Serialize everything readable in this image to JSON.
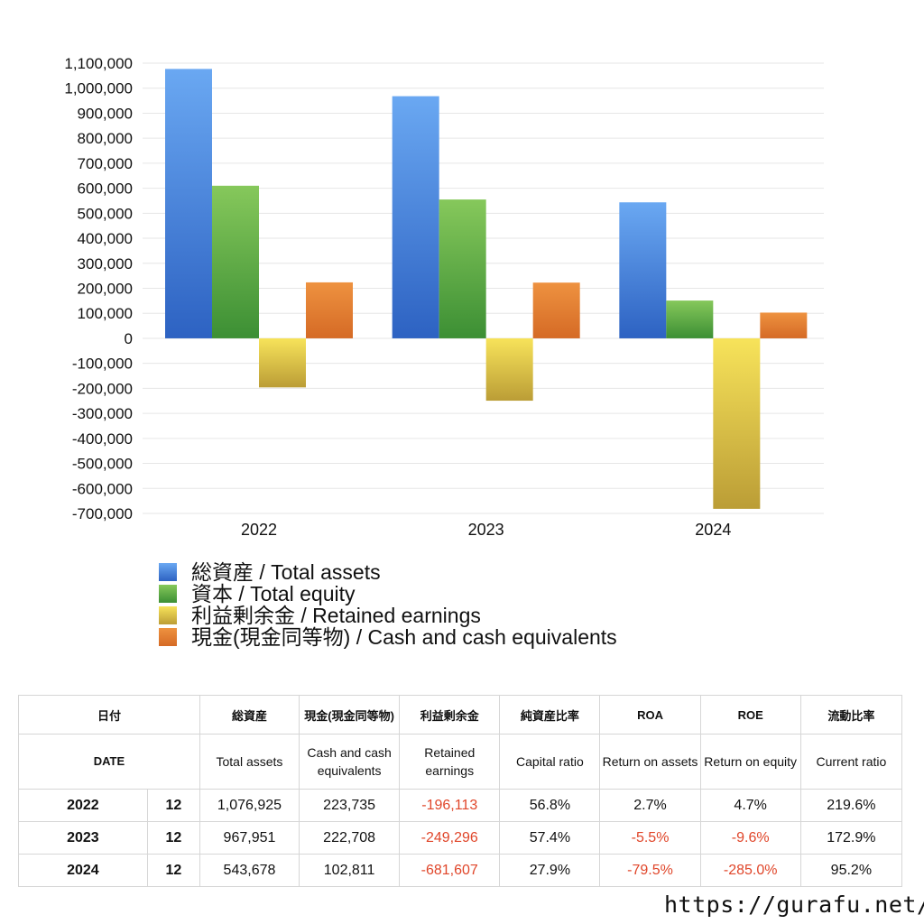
{
  "chart_data": {
    "type": "bar",
    "categories": [
      "2022",
      "2023",
      "2024"
    ],
    "series": [
      {
        "name": "総資産 / Total assets",
        "values": [
          1076925,
          967951,
          543678
        ],
        "color_top": "#6aa8f2",
        "color_bottom": "#2d62c2"
      },
      {
        "name": "資本 / Total equity",
        "values": [
          610000,
          555000,
          151000
        ],
        "color_top": "#86c85b",
        "color_bottom": "#3c8f34"
      },
      {
        "name": "利益剰余金 / Retained earnings",
        "values": [
          -196113,
          -249296,
          -681607
        ],
        "color_top": "#f7e35a",
        "color_bottom": "#bb9d36"
      },
      {
        "name": "現金(現金同等物) / Cash and cash equivalents",
        "values": [
          223735,
          222708,
          102811
        ],
        "color_top": "#ee9240",
        "color_bottom": "#d56a25"
      }
    ],
    "ylim": [
      -700000,
      1100000
    ],
    "yticks": [
      1100000,
      1000000,
      900000,
      800000,
      700000,
      600000,
      500000,
      400000,
      300000,
      200000,
      100000,
      0,
      -100000,
      -200000,
      -300000,
      -400000,
      -500000,
      -600000,
      -700000
    ],
    "ytick_labels": [
      "1,100,000",
      "1,000,000",
      "900,000",
      "800,000",
      "700,000",
      "600,000",
      "500,000",
      "400,000",
      "300,000",
      "200,000",
      "100,000",
      "0",
      "-100,000",
      "-200,000",
      "-300,000",
      "-400,000",
      "-500,000",
      "-600,000",
      "-700,000"
    ],
    "grid": true,
    "legend_position": "bottom-left"
  },
  "table": {
    "headers_ja": [
      "日付",
      "総資産",
      "現金(現金同等物)",
      "利益剰余金",
      "純資産比率",
      "ROA",
      "ROE",
      "流動比率"
    ],
    "headers_en": [
      "DATE",
      "Total assets",
      "Cash and cash equivalents",
      "Retained earnings",
      "Capital ratio",
      "Return on assets",
      "Return on equity",
      "Current ratio"
    ],
    "rows": [
      {
        "year": "2022",
        "month": "12",
        "total_assets": "1,076,925",
        "cash": "223,735",
        "retained": "-196,113",
        "capital_ratio": "56.8%",
        "roa": "2.7%",
        "roe": "4.7%",
        "current_ratio": "219.6%"
      },
      {
        "year": "2023",
        "month": "12",
        "total_assets": "967,951",
        "cash": "222,708",
        "retained": "-249,296",
        "capital_ratio": "57.4%",
        "roa": "-5.5%",
        "roe": "-9.6%",
        "current_ratio": "172.9%"
      },
      {
        "year": "2024",
        "month": "12",
        "total_assets": "543,678",
        "cash": "102,811",
        "retained": "-681,607",
        "capital_ratio": "27.9%",
        "roa": "-79.5%",
        "roe": "-285.0%",
        "current_ratio": "95.2%"
      }
    ]
  },
  "footer": {
    "url": "https://gurafu.net/"
  }
}
